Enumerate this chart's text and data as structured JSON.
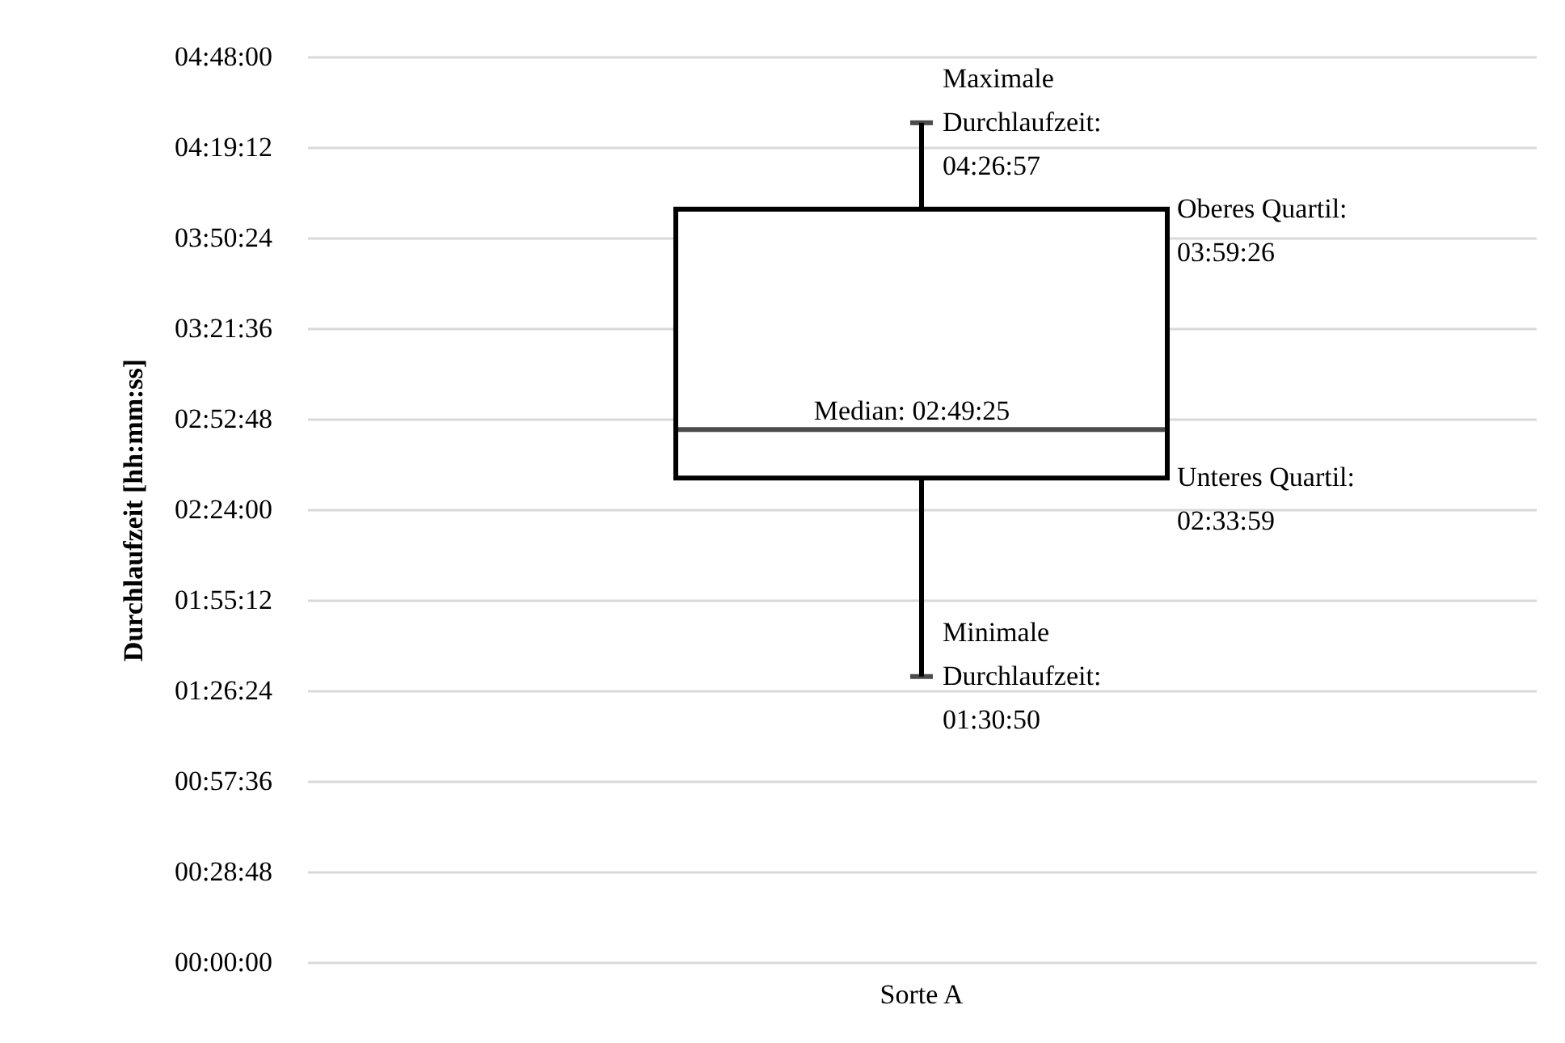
{
  "chart_data": {
    "type": "box",
    "ylabel": "Durchlaufzeit [hh:mm:ss]",
    "categories": [
      "Sorte A"
    ],
    "boxes": [
      {
        "low": 1.51389,
        "q1": 2.56639,
        "median": 2.82361,
        "q3": 3.99056,
        "high": 4.44917
      }
    ],
    "ylim": [
      0,
      4.8
    ],
    "yticks": [
      {
        "value": 0,
        "label": "00:00:00"
      },
      {
        "value": 0.48,
        "label": "00:28:48"
      },
      {
        "value": 0.96,
        "label": "00:57:36"
      },
      {
        "value": 1.44,
        "label": "01:26:24"
      },
      {
        "value": 1.92,
        "label": "01:55:12"
      },
      {
        "value": 2.4,
        "label": "02:24:00"
      },
      {
        "value": 2.88,
        "label": "02:52:48"
      },
      {
        "value": 3.36,
        "label": "03:21:36"
      },
      {
        "value": 3.84,
        "label": "03:50:24"
      },
      {
        "value": 4.32,
        "label": "04:19:12"
      },
      {
        "value": 4.8,
        "label": "04:48:00"
      }
    ],
    "grid": "y",
    "annotations": [
      {
        "text": "Maximale\nDurchlaufzeit:\n04:26:57",
        "x": "Sorte A",
        "y": 4.44917
      },
      "Oberes Quartil:\n03:59:26",
      {
        "text": "Median: 02:49:25",
        "x": "Sorte A",
        "y": 2.82361
      },
      "Unteres Quartil:\n02:33:59",
      {
        "text": "Minimale\nDurchlaufzeit:\n01:30:50",
        "x": "Sorte A",
        "y": 1.51389
      }
    ]
  }
}
